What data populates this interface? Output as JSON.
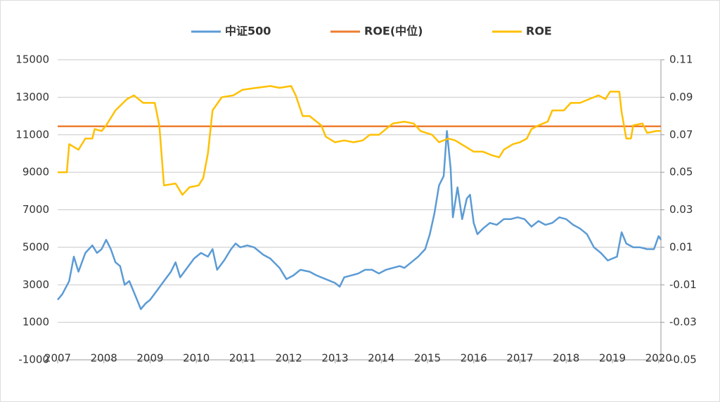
{
  "chart_data": {
    "type": "line",
    "xlim": [
      2007,
      2020.05
    ],
    "xticks": [
      2007,
      2008,
      2009,
      2010,
      2011,
      2012,
      2013,
      2014,
      2015,
      2016,
      2017,
      2018,
      2019,
      2020
    ],
    "ylim": [
      -1000,
      15000
    ],
    "yticks": [
      -1000,
      1000,
      3000,
      5000,
      7000,
      9000,
      11000,
      13000,
      15000
    ],
    "y2lim": [
      -0.05,
      0.11
    ],
    "y2ticks": [
      -0.05,
      -0.03,
      -0.01,
      0.01,
      0.03,
      0.05,
      0.07,
      0.09,
      0.11
    ],
    "grid": true,
    "legend": "top",
    "series": [
      {
        "name": "中证500",
        "color": "#5b9bd5",
        "axis": "y",
        "x": [
          2007.0,
          2007.1,
          2007.25,
          2007.35,
          2007.45,
          2007.6,
          2007.75,
          2007.85,
          2007.95,
          2008.05,
          2008.15,
          2008.25,
          2008.35,
          2008.45,
          2008.55,
          2008.7,
          2008.8,
          2008.9,
          2009.0,
          2009.15,
          2009.3,
          2009.45,
          2009.55,
          2009.65,
          2009.8,
          2009.95,
          2010.1,
          2010.25,
          2010.35,
          2010.45,
          2010.6,
          2010.75,
          2010.85,
          2010.95,
          2011.1,
          2011.25,
          2011.45,
          2011.6,
          2011.8,
          2011.95,
          2012.1,
          2012.25,
          2012.45,
          2012.6,
          2012.8,
          2013.0,
          2013.1,
          2013.2,
          2013.35,
          2013.5,
          2013.65,
          2013.8,
          2013.95,
          2014.1,
          2014.25,
          2014.4,
          2014.5,
          2014.65,
          2014.8,
          2014.95,
          2015.05,
          2015.15,
          2015.25,
          2015.35,
          2015.42,
          2015.5,
          2015.55,
          2015.65,
          2015.75,
          2015.85,
          2015.92,
          2016.0,
          2016.08,
          2016.2,
          2016.35,
          2016.5,
          2016.65,
          2016.8,
          2016.95,
          2017.1,
          2017.25,
          2017.4,
          2017.55,
          2017.7,
          2017.85,
          2018.0,
          2018.15,
          2018.3,
          2018.45,
          2018.6,
          2018.75,
          2018.9,
          2019.0,
          2019.1,
          2019.2,
          2019.3,
          2019.45,
          2019.6,
          2019.75,
          2019.9,
          2020.0,
          2020.05
        ],
        "values": [
          2200,
          2500,
          3200,
          4500,
          3700,
          4700,
          5100,
          4700,
          4900,
          5400,
          4900,
          4200,
          4000,
          3000,
          3200,
          2300,
          1700,
          2000,
          2200,
          2700,
          3200,
          3700,
          4200,
          3400,
          3900,
          4400,
          4700,
          4500,
          4900,
          3800,
          4300,
          4900,
          5200,
          5000,
          5100,
          5000,
          4600,
          4400,
          3900,
          3300,
          3500,
          3800,
          3700,
          3500,
          3300,
          3100,
          2900,
          3400,
          3500,
          3600,
          3800,
          3800,
          3600,
          3800,
          3900,
          4000,
          3900,
          4200,
          4500,
          4900,
          5700,
          6800,
          8300,
          8800,
          11200,
          9200,
          6600,
          8200,
          6500,
          7600,
          7800,
          6300,
          5700,
          6000,
          6300,
          6200,
          6500,
          6500,
          6600,
          6500,
          6100,
          6400,
          6200,
          6300,
          6600,
          6500,
          6200,
          6000,
          5700,
          5000,
          4700,
          4300,
          4400,
          4500,
          5800,
          5200,
          5000,
          5000,
          4900,
          4900,
          5600,
          5400
        ]
      },
      {
        "name": "ROE(中位)",
        "color": "#ed7d31",
        "axis": "y2",
        "x": [
          2007.0,
          2020.05
        ],
        "values": [
          0.0745,
          0.0745
        ]
      },
      {
        "name": "ROE",
        "color": "#ffc000",
        "axis": "y2",
        "x": [
          2007.0,
          2007.2,
          2007.25,
          2007.45,
          2007.6,
          2007.75,
          2007.8,
          2007.95,
          2008.05,
          2008.25,
          2008.5,
          2008.65,
          2008.85,
          2009.1,
          2009.2,
          2009.3,
          2009.55,
          2009.7,
          2009.85,
          2010.05,
          2010.15,
          2010.25,
          2010.35,
          2010.55,
          2010.8,
          2011.0,
          2011.3,
          2011.6,
          2011.8,
          2012.05,
          2012.15,
          2012.3,
          2012.45,
          2012.7,
          2012.8,
          2013.0,
          2013.2,
          2013.4,
          2013.6,
          2013.75,
          2013.95,
          2014.1,
          2014.25,
          2014.5,
          2014.7,
          2014.85,
          2015.1,
          2015.25,
          2015.45,
          2015.6,
          2015.8,
          2016.0,
          2016.2,
          2016.4,
          2016.55,
          2016.65,
          2016.85,
          2017.0,
          2017.15,
          2017.25,
          2017.4,
          2017.6,
          2017.7,
          2017.95,
          2018.1,
          2018.3,
          2018.5,
          2018.7,
          2018.85,
          2018.95,
          2019.15,
          2019.2,
          2019.3,
          2019.4,
          2019.45,
          2019.65,
          2019.75,
          2019.95,
          2020.05
        ],
        "values": [
          0.05,
          0.05,
          0.065,
          0.062,
          0.068,
          0.068,
          0.073,
          0.072,
          0.075,
          0.083,
          0.089,
          0.091,
          0.087,
          0.087,
          0.075,
          0.043,
          0.044,
          0.038,
          0.042,
          0.043,
          0.047,
          0.06,
          0.083,
          0.09,
          0.091,
          0.094,
          0.095,
          0.096,
          0.095,
          0.096,
          0.091,
          0.08,
          0.08,
          0.075,
          0.069,
          0.066,
          0.067,
          0.066,
          0.067,
          0.07,
          0.07,
          0.073,
          0.076,
          0.077,
          0.076,
          0.072,
          0.07,
          0.066,
          0.068,
          0.067,
          0.064,
          0.061,
          0.061,
          0.059,
          0.058,
          0.062,
          0.065,
          0.066,
          0.068,
          0.073,
          0.075,
          0.077,
          0.083,
          0.083,
          0.087,
          0.087,
          0.089,
          0.091,
          0.089,
          0.093,
          0.093,
          0.082,
          0.068,
          0.068,
          0.075,
          0.076,
          0.071,
          0.072,
          0.072
        ]
      }
    ]
  }
}
